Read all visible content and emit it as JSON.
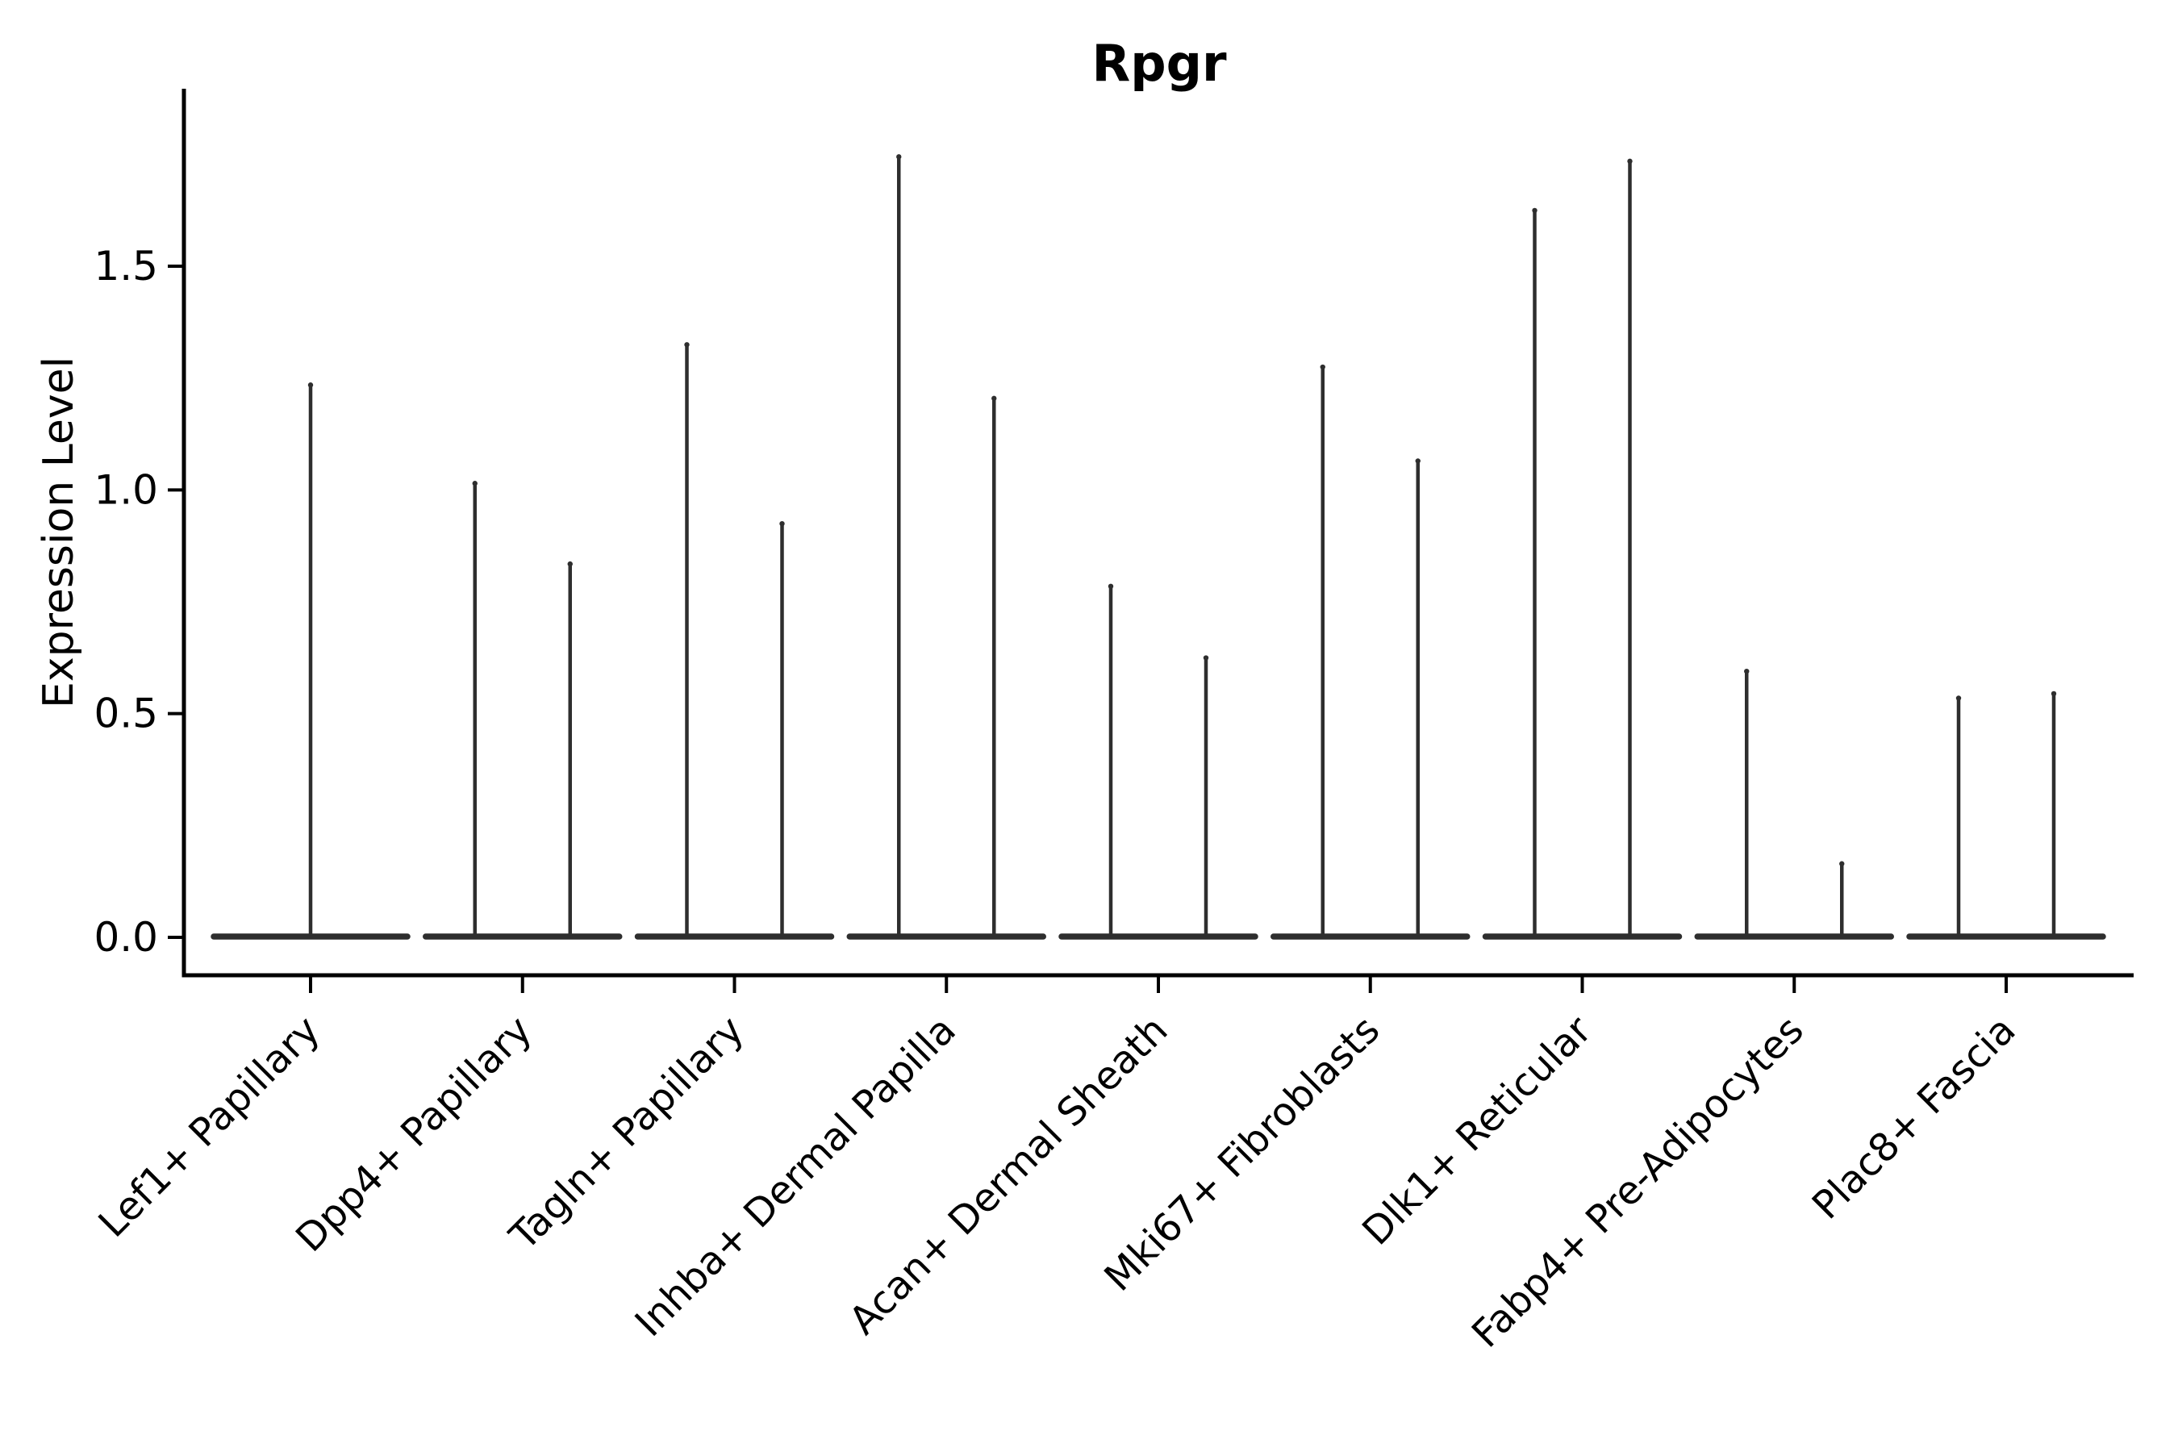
{
  "figure": {
    "title": "Rpgr",
    "y_axis_label": "Expression Level"
  },
  "chart_data": {
    "type": "violin",
    "title": "Rpgr",
    "xlabel": "",
    "ylabel": "Expression Level",
    "ylim": [
      -0.085,
      1.9
    ],
    "yticks": [
      0.0,
      0.5,
      1.0,
      1.5
    ],
    "ytick_labels": [
      "0.0",
      "0.5",
      "1.0",
      "1.5"
    ],
    "grid": false,
    "legend_position": "none",
    "baseline_value": 0.0,
    "style_note": "each violin is flat (wide) at expression 0 with a single thin vertical tail rising to its maximum; categories 2-9 contain two side-by-side violins, category 1 contains one centered violin",
    "categories": [
      "Lef1+ Papillary",
      "Dpp4+ Papillary",
      "Tagln+ Papillary",
      "Inhba+ Dermal Papilla",
      "Acan+ Dermal Sheath",
      "Mki67+ Fibroblasts",
      "Dlk1+ Reticular",
      "Fabp4+ Pre-Adipocytes",
      "Plac8+ Fascia"
    ],
    "series": [
      {
        "category": "Lef1+ Papillary",
        "tail_maxima": [
          1.24
        ]
      },
      {
        "category": "Dpp4+ Papillary",
        "tail_maxima": [
          1.02,
          0.84
        ]
      },
      {
        "category": "Tagln+ Papillary",
        "tail_maxima": [
          1.33,
          0.93
        ]
      },
      {
        "category": "Inhba+ Dermal Papilla",
        "tail_maxima": [
          1.75,
          1.21
        ]
      },
      {
        "category": "Acan+ Dermal Sheath",
        "tail_maxima": [
          0.79,
          0.63
        ]
      },
      {
        "category": "Mki67+ Fibroblasts",
        "tail_maxima": [
          1.28,
          1.07
        ]
      },
      {
        "category": "Dlk1+ Reticular",
        "tail_maxima": [
          1.63,
          1.74
        ]
      },
      {
        "category": "Fabp4+ Pre-Adipocytes",
        "tail_maxima": [
          0.6,
          0.17
        ]
      },
      {
        "category": "Plac8+ Fascia",
        "tail_maxima": [
          0.54,
          0.55
        ]
      }
    ],
    "colors": {
      "axis": "#000000",
      "text": "#000000",
      "violin": "#2e2e2e",
      "background": "#ffffff"
    }
  }
}
